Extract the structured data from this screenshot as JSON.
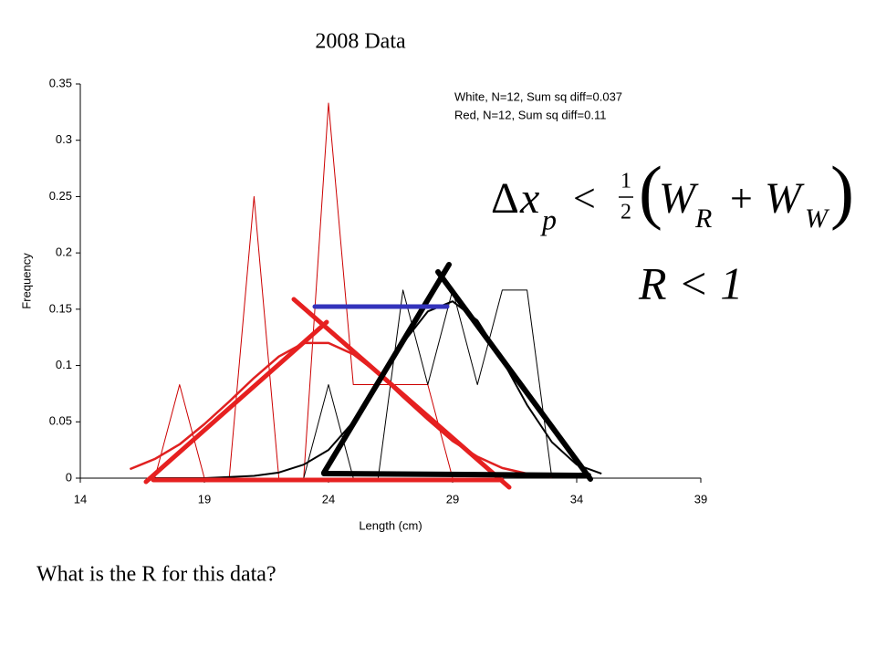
{
  "chart_data": {
    "type": "line",
    "title": "2008 Data",
    "xlabel": "Length (cm)",
    "ylabel": "Frequency",
    "xlim": [
      14,
      39
    ],
    "xticks": [
      14,
      19,
      24,
      29,
      34,
      39
    ],
    "ylim": [
      0,
      0.35
    ],
    "yticks": [
      0,
      0.05,
      0.1,
      0.15,
      0.2,
      0.25,
      0.3,
      0.35
    ],
    "annotations": [
      "White, N=12, Sum sq diff=0.037",
      "Red, N=12, Sum sq diff=0.11"
    ],
    "series": [
      {
        "color": "#cc0000",
        "width": 1,
        "x": [
          17,
          18,
          19,
          20,
          21,
          22,
          23,
          24,
          25,
          26,
          27,
          28,
          29
        ],
        "values": [
          0,
          0.083,
          0,
          0,
          0.25,
          0,
          0,
          0.333,
          0.083,
          0.083,
          0.083,
          0.083,
          0
        ]
      },
      {
        "color": "#000000",
        "width": 1,
        "x": [
          23,
          24,
          25,
          26,
          27,
          28,
          29,
          30,
          31,
          32,
          33
        ],
        "values": [
          0,
          0.083,
          0,
          0,
          0.167,
          0.083,
          0.167,
          0.083,
          0.167,
          0.167,
          0
        ]
      },
      {
        "color": "#e02020",
        "width": 2.5,
        "x": [
          16,
          17,
          18,
          19,
          20,
          21,
          22,
          23,
          24,
          25,
          26,
          27,
          28,
          29,
          30,
          31,
          32,
          33
        ],
        "values": [
          0.008,
          0.017,
          0.03,
          0.048,
          0.068,
          0.089,
          0.108,
          0.12,
          0.12,
          0.11,
          0.093,
          0.072,
          0.052,
          0.033,
          0.019,
          0.009,
          0.004,
          0.001
        ]
      },
      {
        "color": "#000000",
        "width": 2,
        "x": [
          17,
          18,
          19,
          20,
          21,
          22,
          23,
          24,
          25,
          26,
          27,
          28,
          29,
          30,
          31,
          32,
          33,
          34,
          35
        ],
        "values": [
          0,
          0,
          0,
          0.001,
          0.002,
          0.005,
          0.012,
          0.025,
          0.05,
          0.085,
          0.12,
          0.148,
          0.157,
          0.14,
          0.105,
          0.065,
          0.032,
          0.012,
          0.004
        ]
      }
    ]
  },
  "formula": {
    "delta": "Δ",
    "x": "x",
    "p": "p",
    "lt": "<",
    "num": "1",
    "den": "2",
    "open": "(",
    "w1": "W",
    "r": "R",
    "plus": "+",
    "w2": "W",
    "w": "W",
    "close": ")"
  },
  "condition": "R < 1",
  "question": "What is the R for this data?"
}
